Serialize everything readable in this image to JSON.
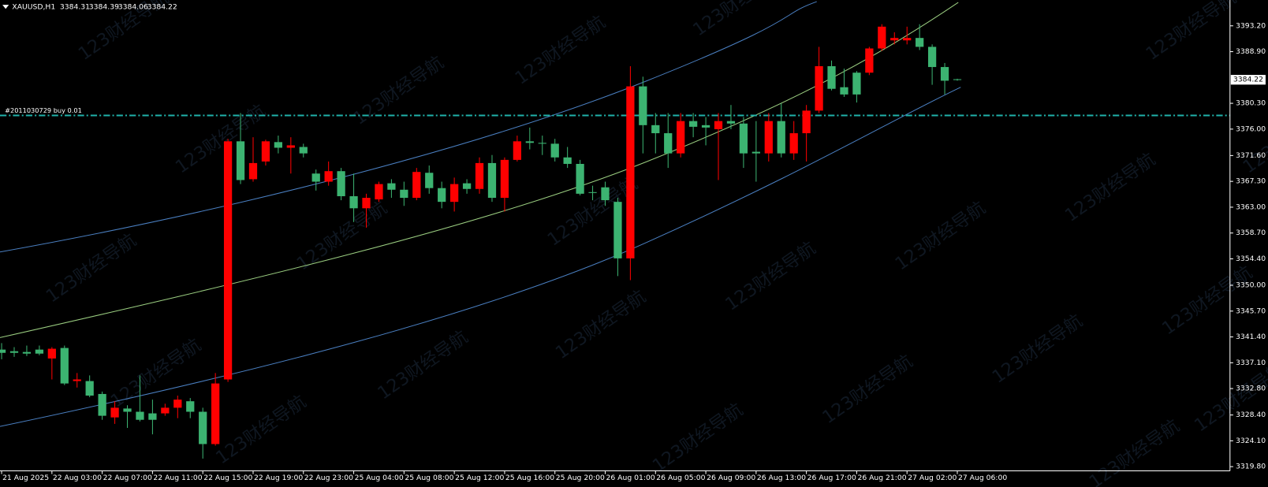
{
  "chart_data": {
    "type": "candlestick",
    "title": "XAUUSD,H1",
    "watermark": "123财经导航",
    "categories": [
      "21 Aug 2025",
      null,
      null,
      null,
      "22 Aug 03:00",
      null,
      null,
      null,
      "22 Aug 07:00",
      null,
      null,
      null,
      "22 Aug 11:00",
      null,
      null,
      null,
      "22 Aug 15:00",
      null,
      null,
      null,
      "22 Aug 19:00",
      null,
      null,
      null,
      "22 Aug 23:00",
      null,
      null,
      null,
      "25 Aug 04:00",
      null,
      null,
      null,
      "25 Aug 08:00",
      null,
      null,
      null,
      "25 Aug 12:00",
      null,
      null,
      null,
      "25 Aug 16:00",
      null,
      null,
      null,
      "25 Aug 20:00",
      null,
      null,
      null,
      "26 Aug 01:00",
      null,
      null,
      null,
      "26 Aug 05:00",
      null,
      null,
      null,
      "26 Aug 09:00",
      null,
      null,
      null,
      "26 Aug 13:00",
      null,
      null,
      null,
      "26 Aug 17:00",
      null,
      null,
      null,
      "26 Aug 21:00",
      null,
      null,
      null,
      "27 Aug 02:00",
      null,
      null,
      null,
      "27 Aug 06:00"
    ],
    "open": [
      3339.29,
      3339.02,
      3338.89,
      3339.29,
      3337.81,
      3339.56,
      3334.05,
      3334.05,
      3331.9,
      3328.0,
      3329.48,
      3328.94,
      3328.67,
      3328.67,
      3329.61,
      3330.69,
      3328.94,
      3323.56,
      3334.32,
      3373.97,
      3367.66,
      3370.61,
      3373.84,
      3372.9,
      3373.03,
      3368.6,
      3367.25,
      3369.0,
      3364.83,
      3362.82,
      3364.3,
      3366.98,
      3365.91,
      3364.56,
      3368.73,
      3366.18,
      3363.89,
      3366.98,
      3366.04,
      3370.35,
      3364.56,
      3370.88,
      3373.97,
      3373.71,
      3373.57,
      3371.29,
      3370.21,
      3365.51,
      3366.31,
      3363.89,
      3354.48,
      3383.12,
      3376.66,
      3375.32,
      3371.96,
      3377.34,
      3376.66,
      3375.99,
      3377.34,
      3376.93,
      3372.23,
      3371.96,
      3377.34,
      3371.96,
      3375.32,
      3379.08,
      3386.48,
      3382.98,
      3385.4,
      3385.4,
      3389.43,
      3390.78,
      3390.78,
      3391.18,
      3389.7,
      3386.34,
      3384.31
    ],
    "high": [
      3340.37,
      3339.7,
      3339.96,
      3339.96,
      3339.7,
      3339.96,
      3335.39,
      3334.99,
      3332.3,
      3330.69,
      3330.02,
      3334.99,
      3330.96,
      3330.28,
      3331.63,
      3331.23,
      3329.61,
      3335.39,
      3374.38,
      3378.68,
      3374.65,
      3374.24,
      3374.92,
      3374.65,
      3373.57,
      3369.27,
      3370.61,
      3369.54,
      3368.6,
      3365.24,
      3367.25,
      3367.66,
      3367.25,
      3369.54,
      3369.94,
      3367.25,
      3367.93,
      3367.66,
      3371.29,
      3371.69,
      3371.29,
      3374.92,
      3376.26,
      3374.92,
      3374.38,
      3373.03,
      3370.88,
      3366.58,
      3367.25,
      3364.56,
      3386.48,
      3384.73,
      3378.68,
      3378.68,
      3378.68,
      3378.68,
      3378.01,
      3378.68,
      3380.02,
      3378.01,
      3377.34,
      3378.68,
      3380.29,
      3377.34,
      3380.02,
      3389.7,
      3387.42,
      3386.07,
      3385.67,
      3389.7,
      3393.47,
      3392.12,
      3393.06,
      3393.47,
      3390.11,
      3387.01,
      3384.39
    ],
    "low": [
      3337.68,
      3338.08,
      3338.22,
      3338.35,
      3334.32,
      3333.38,
      3332.97,
      3331.36,
      3327.6,
      3326.92,
      3326.25,
      3327.33,
      3325.18,
      3328.27,
      3327.87,
      3327.87,
      3321.14,
      3323.29,
      3333.91,
      3366.85,
      3367.25,
      3369.94,
      3371.96,
      3368.6,
      3371.29,
      3365.77,
      3366.58,
      3364.16,
      3360.53,
      3359.59,
      3363.89,
      3364.56,
      3363.22,
      3364.16,
      3365.24,
      3362.82,
      3362.28,
      3365.24,
      3365.24,
      3363.89,
      3362.28,
      3370.61,
      3372.63,
      3371.69,
      3370.61,
      3369.54,
      3364.97,
      3364.16,
      3363.22,
      3351.53,
      3350.85,
      3371.96,
      3371.96,
      3369.54,
      3371.29,
      3374.65,
      3373.3,
      3367.52,
      3375.99,
      3369.54,
      3367.25,
      3370.61,
      3371.29,
      3370.88,
      3370.61,
      3378.68,
      3382.44,
      3381.37,
      3380.43,
      3385.0,
      3389.03,
      3390.11,
      3390.11,
      3389.17,
      3383.38,
      3381.77,
      3384.06
    ],
    "close": [
      3338.75,
      3338.75,
      3338.62,
      3338.62,
      3339.43,
      3333.65,
      3334.32,
      3331.63,
      3328.27,
      3329.61,
      3328.94,
      3327.6,
      3327.6,
      3329.61,
      3330.96,
      3328.94,
      3323.56,
      3333.65,
      3373.97,
      3367.52,
      3370.35,
      3373.97,
      3372.9,
      3373.3,
      3371.96,
      3367.25,
      3369.0,
      3364.83,
      3362.82,
      3364.56,
      3366.85,
      3365.91,
      3364.56,
      3368.87,
      3366.18,
      3363.89,
      3366.85,
      3366.04,
      3370.35,
      3364.56,
      3370.88,
      3373.97,
      3373.71,
      3373.57,
      3371.29,
      3370.21,
      3365.24,
      3365.37,
      3364.16,
      3354.48,
      3383.12,
      3376.66,
      3375.32,
      3371.96,
      3377.34,
      3376.39,
      3376.26,
      3377.34,
      3376.93,
      3371.96,
      3371.96,
      3377.34,
      3371.96,
      3375.32,
      3379.08,
      3386.48,
      3382.71,
      3381.77,
      3381.77,
      3389.43,
      3393.06,
      3391.18,
      3391.18,
      3389.7,
      3386.34,
      3384.06,
      3384.22
    ],
    "up_color": "#ff0000",
    "down_color": "#3cb371",
    "ylim": [
      3319.1,
      3397.5
    ],
    "yticks": [
      {
        "value": 3393.2,
        "label": "3393.20"
      },
      {
        "value": 3388.9,
        "label": "3388.90"
      },
      {
        "value": 3380.3,
        "label": "3380.30"
      },
      {
        "value": 3376.0,
        "label": "3376.00"
      },
      {
        "value": 3371.6,
        "label": "3371.60"
      },
      {
        "value": 3367.3,
        "label": "3367.30"
      },
      {
        "value": 3363.0,
        "label": "3363.00"
      },
      {
        "value": 3358.7,
        "label": "3358.70"
      },
      {
        "value": 3354.4,
        "label": "3354.40"
      },
      {
        "value": 3350.0,
        "label": "3350.00"
      },
      {
        "value": 3345.7,
        "label": "3345.70"
      },
      {
        "value": 3341.4,
        "label": "3341.40"
      },
      {
        "value": 3337.1,
        "label": "3337.10"
      },
      {
        "value": 3332.8,
        "label": "3332.80"
      },
      {
        "value": 3328.4,
        "label": "3328.40"
      },
      {
        "value": 3324.1,
        "label": "3324.10"
      },
      {
        "value": 3319.8,
        "label": "3319.80"
      }
    ],
    "order": {
      "label": "#2011030729 buy 0.01",
      "price": 3378.28,
      "color": "#20b2aa"
    },
    "grid": false
  }
}
